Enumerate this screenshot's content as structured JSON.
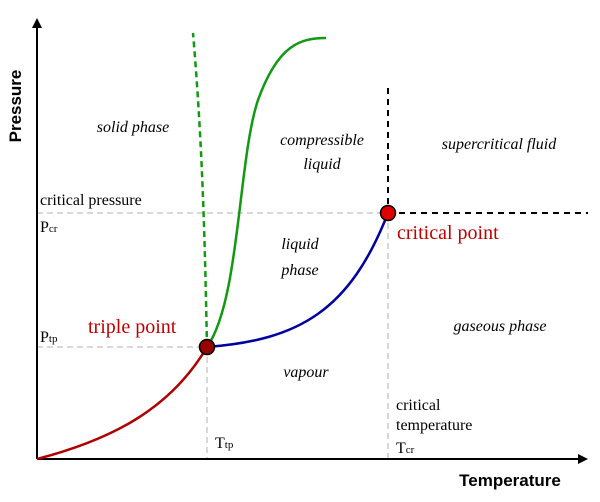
{
  "axes": {
    "y_label": "Pressure",
    "x_label": "Temperature"
  },
  "regions": {
    "solid": [
      "solid phase"
    ],
    "compressible_liquid": [
      "compressible",
      "liquid"
    ],
    "supercritical": [
      "supercritical fluid"
    ],
    "liquid": [
      "liquid",
      "phase"
    ],
    "gaseous": [
      "gaseous phase"
    ],
    "vapour": [
      "vapour"
    ]
  },
  "points": {
    "critical": "critical point",
    "triple": "triple point"
  },
  "markers": {
    "critical_pressure": "critical pressure",
    "p_cr": {
      "main": "P",
      "sub": "cr"
    },
    "p_tp": {
      "main": "P",
      "sub": "tp"
    },
    "critical_temperature": [
      "critical",
      "temperature"
    ],
    "t_cr": {
      "main": "T",
      "sub": "cr"
    },
    "t_tp": {
      "main": "T",
      "sub": "tp"
    }
  }
}
